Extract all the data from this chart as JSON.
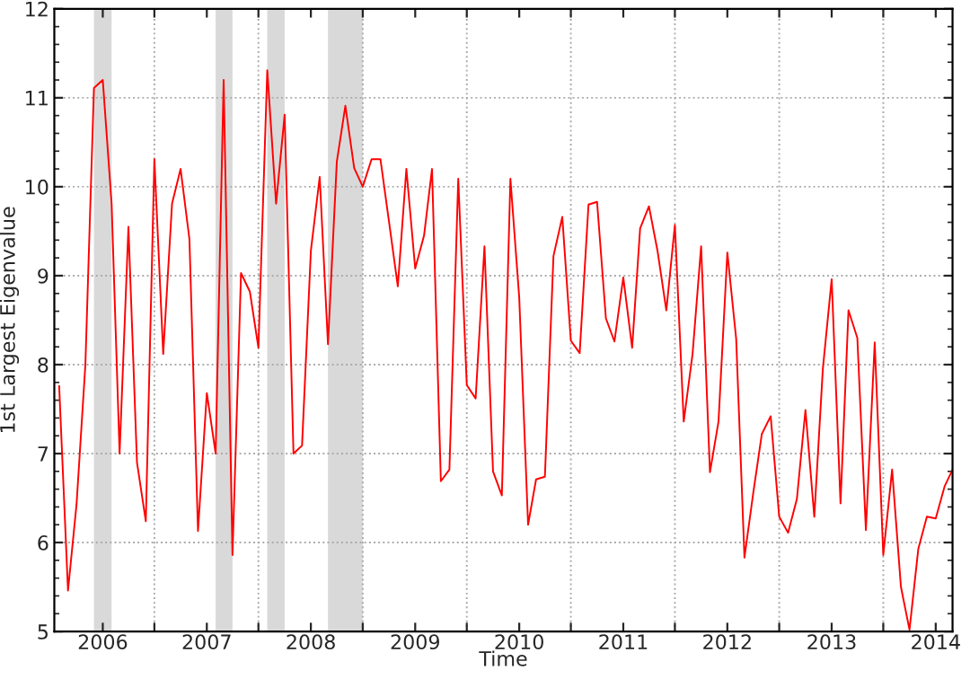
{
  "chart_data": {
    "type": "line",
    "xlabel": "Time",
    "ylabel": "1st Largest Eigenvalue",
    "x": [
      "2005-08",
      "2005-09",
      "2005-10",
      "2005-11",
      "2005-12",
      "2006-01",
      "2006-02",
      "2006-03",
      "2006-04",
      "2006-05",
      "2006-06",
      "2006-07",
      "2006-08",
      "2006-09",
      "2006-10",
      "2006-11",
      "2006-12",
      "2007-01",
      "2007-02",
      "2007-03",
      "2007-04",
      "2007-05",
      "2007-06",
      "2007-07",
      "2007-08",
      "2007-09",
      "2007-10",
      "2007-11",
      "2007-12",
      "2008-01",
      "2008-02",
      "2008-03",
      "2008-04",
      "2008-05",
      "2008-06",
      "2008-07",
      "2008-08",
      "2008-09",
      "2008-10",
      "2008-11",
      "2008-12",
      "2009-01",
      "2009-02",
      "2009-03",
      "2009-04",
      "2009-05",
      "2009-06",
      "2009-07",
      "2009-08",
      "2009-09",
      "2009-10",
      "2009-11",
      "2009-12",
      "2010-01",
      "2010-02",
      "2010-03",
      "2010-04",
      "2010-05",
      "2010-06",
      "2010-07",
      "2010-08",
      "2010-09",
      "2010-10",
      "2010-11",
      "2010-12",
      "2011-01",
      "2011-02",
      "2011-03",
      "2011-04",
      "2011-05",
      "2011-06",
      "2011-07",
      "2011-08",
      "2011-09",
      "2011-10",
      "2011-11",
      "2011-12",
      "2012-01",
      "2012-02",
      "2012-03",
      "2012-04",
      "2012-05",
      "2012-06",
      "2012-07",
      "2012-08",
      "2012-09",
      "2012-10",
      "2012-11",
      "2012-12",
      "2013-01",
      "2013-02",
      "2013-03",
      "2013-04",
      "2013-05",
      "2013-06",
      "2013-07",
      "2013-08",
      "2013-09",
      "2013-10",
      "2013-11",
      "2013-12",
      "2014-01",
      "2014-02",
      "2014-03"
    ],
    "series": [
      {
        "color": "#ff0000",
        "values": [
          7.76,
          5.46,
          6.43,
          8.0,
          11.11,
          11.2,
          9.81,
          7.0,
          9.55,
          6.9,
          6.24,
          10.31,
          8.12,
          9.81,
          10.2,
          9.41,
          6.13,
          7.68,
          7.0,
          11.2,
          5.86,
          9.03,
          8.82,
          8.19,
          11.31,
          9.81,
          10.81,
          7.0,
          7.09,
          9.28,
          10.11,
          8.23,
          10.28,
          10.91,
          10.21,
          10.0,
          10.31,
          10.31,
          9.61,
          8.88,
          10.2,
          9.08,
          9.45,
          10.2,
          6.69,
          6.82,
          10.09,
          7.77,
          7.62,
          9.33,
          6.8,
          6.53,
          10.09,
          8.75,
          6.2,
          6.71,
          6.74,
          9.22,
          9.66,
          8.27,
          8.13,
          9.8,
          9.83,
          8.52,
          8.26,
          8.98,
          8.19,
          9.53,
          9.78,
          9.28,
          8.61,
          9.57,
          7.36,
          8.12,
          9.33,
          6.79,
          7.36,
          9.26,
          8.29,
          5.83,
          6.56,
          7.22,
          7.42,
          6.29,
          6.11,
          6.49,
          7.49,
          6.29,
          7.95,
          8.96,
          6.44,
          8.61,
          8.3,
          6.14,
          8.25,
          5.86,
          6.82,
          5.5,
          5.02,
          5.93,
          6.29,
          6.27,
          6.63,
          6.82
        ]
      }
    ],
    "bands": [
      {
        "axis": "x",
        "from": "2005-12-01",
        "to": "2006-02-01",
        "color": "#d9d9d9"
      },
      {
        "axis": "x",
        "from": "2007-02-01",
        "to": "2007-04-01",
        "color": "#d9d9d9"
      },
      {
        "axis": "x",
        "from": "2007-08-01",
        "to": "2007-10-01",
        "color": "#d9d9d9"
      },
      {
        "axis": "x",
        "from": "2008-03-01",
        "to": "2008-07-01",
        "color": "#d9d9d9"
      }
    ],
    "xlim": [
      "2005-07-15",
      "2014-03"
    ],
    "xticks": [
      {
        "value": "2006-01-01",
        "label": "2006"
      },
      {
        "value": "2006-07-01",
        "label": null
      },
      {
        "value": "2007-01-01",
        "label": "2007"
      },
      {
        "value": "2007-07-01",
        "label": null
      },
      {
        "value": "2008-01-01",
        "label": "2008"
      },
      {
        "value": "2008-07-01",
        "label": null
      },
      {
        "value": "2009-01-01",
        "label": "2009"
      },
      {
        "value": "2009-07-01",
        "label": null
      },
      {
        "value": "2010-01-01",
        "label": "2010"
      },
      {
        "value": "2010-07-01",
        "label": null
      },
      {
        "value": "2011-01-01",
        "label": "2011"
      },
      {
        "value": "2011-07-01",
        "label": null
      },
      {
        "value": "2012-01-01",
        "label": "2012"
      },
      {
        "value": "2012-07-01",
        "label": null
      },
      {
        "value": "2013-01-01",
        "label": "2013"
      },
      {
        "value": "2013-07-01",
        "label": null
      },
      {
        "value": "2014-01-01",
        "label": "2014"
      }
    ],
    "ylim": [
      5,
      12
    ],
    "yticks": [
      5,
      6,
      7,
      8,
      9,
      10,
      11,
      12
    ],
    "grid": true,
    "legend": false,
    "marker": "none",
    "line_style": "solid"
  }
}
